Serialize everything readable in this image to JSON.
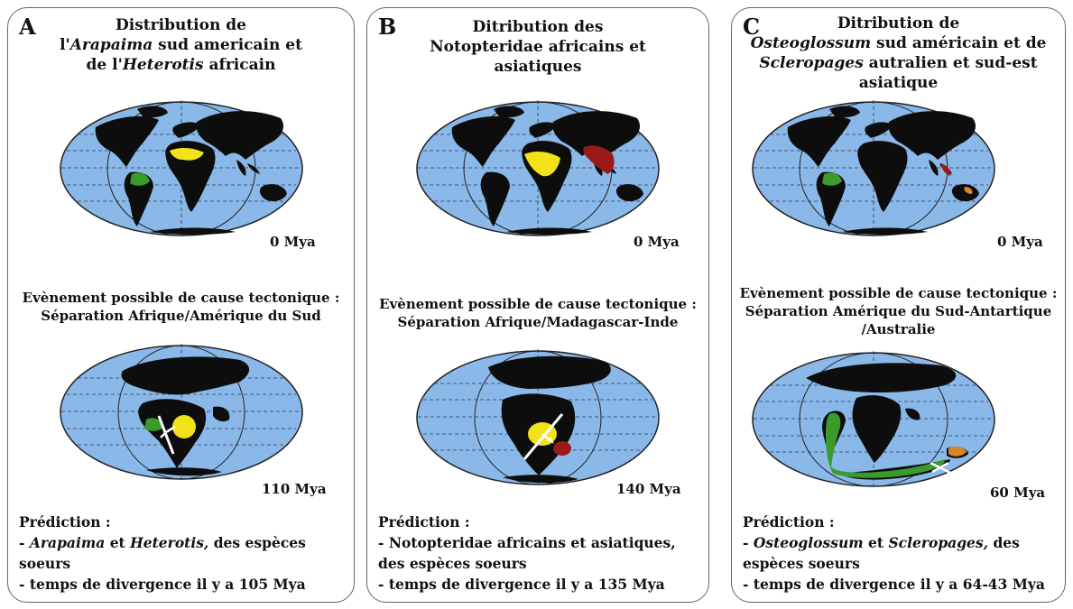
{
  "panels": [
    {
      "letter": "A",
      "title": [
        "Distribution de",
        "l'",
        "Arapaima",
        " sud americain et",
        "de l'",
        "Heterotis",
        " africain"
      ],
      "age_top": "0 Mya",
      "event": [
        "Evènement possible de cause tectonique :",
        "Séparation Afrique/Amérique du Sud"
      ],
      "age_bottom": "110 Mya",
      "prediction": [
        "Prédiction :",
        "- ",
        "Arapaima",
        " et ",
        "Heterotis,",
        " des espèces",
        "soeurs",
        "- temps de divergence il y a 105 Mya"
      ]
    },
    {
      "letter": "B",
      "title": [
        "Ditribution des",
        "Notopteridae africains et",
        "asiatiques"
      ],
      "age_top": "0 Mya",
      "event": [
        "Evènement possible de cause tectonique :",
        "Séparation Afrique/Madagascar-Inde"
      ],
      "age_bottom": "140 Mya",
      "prediction": [
        "Prédiction :",
        "- Notopteridae africains et asiatiques,",
        "des espèces soeurs",
        "- temps de divergence il y a 135 Mya"
      ]
    },
    {
      "letter": "C",
      "title": [
        "Ditribution de",
        "Osteoglossum",
        " sud américain et de",
        "Scleropages",
        " autralien et sud-est",
        "asiatique"
      ],
      "age_top": "0 Mya",
      "event": [
        "Evènement possible de cause tectonique :",
        "Séparation Amérique du Sud-Antartique",
        "/Australie"
      ],
      "age_bottom": "60 Mya",
      "prediction": [
        "Prédiction :",
        "- ",
        "Osteoglossum",
        " et ",
        "Scleropages,",
        " des",
        "espèces soeurs",
        "- temps de divergence il y a 64-43 Mya"
      ]
    }
  ],
  "colors": {
    "ocean": "#8ab8e8",
    "land": "#0d0d0d",
    "south_america_fish": "#3a9a2c",
    "africa_fish": "#f2e21a",
    "asia_fish": "#9a1a1a",
    "australia_fish": "#d8862a",
    "separation_line": "#ffffff"
  }
}
